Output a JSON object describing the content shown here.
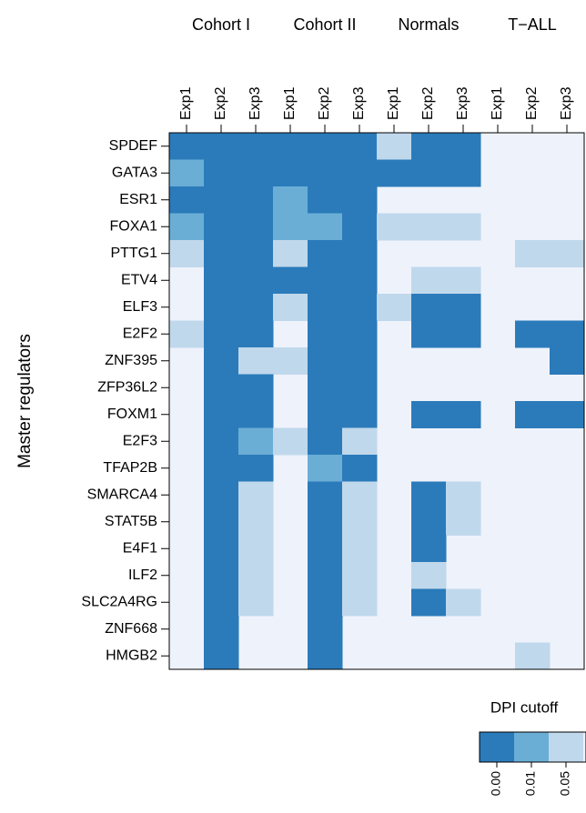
{
  "chart_data": {
    "type": "heatmap",
    "groups": [
      "Cohort I",
      "Cohort II",
      "Normals",
      "T−ALL"
    ],
    "x": [
      "Exp1",
      "Exp2",
      "Exp3",
      "Exp1",
      "Exp2",
      "Exp3",
      "Exp1",
      "Exp2",
      "Exp3",
      "Exp1",
      "Exp2",
      "Exp3"
    ],
    "y_label": "Master regulators",
    "categories": [
      "SPDEF",
      "GATA3",
      "ESR1",
      "FOXA1",
      "PTTG1",
      "ETV4",
      "ELF3",
      "E2F2",
      "ZNF395",
      "ZFP36L2",
      "FOXM1",
      "E2F3",
      "TFAP2B",
      "SMARCA4",
      "STAT5B",
      "E4F1",
      "ILF2",
      "SLC2A4RG",
      "ZNF668",
      "HMGB2"
    ],
    "values": [
      [
        0,
        0,
        0,
        0,
        0,
        0,
        0.05,
        0,
        0,
        null,
        null,
        null
      ],
      [
        0.01,
        0,
        0,
        0,
        0,
        0,
        0,
        0,
        0,
        null,
        null,
        null
      ],
      [
        0,
        0,
        0,
        0.01,
        0,
        0,
        null,
        null,
        null,
        null,
        null,
        null
      ],
      [
        0.01,
        0,
        0,
        0.01,
        0.01,
        0,
        0.05,
        0.05,
        0.05,
        null,
        null,
        null
      ],
      [
        0.05,
        0,
        0,
        0.05,
        0,
        0,
        null,
        null,
        null,
        null,
        0.05,
        0.05
      ],
      [
        null,
        0,
        0,
        0,
        0,
        0,
        null,
        0.05,
        0.05,
        null,
        null,
        null
      ],
      [
        null,
        0,
        0,
        0.05,
        0,
        0,
        0.05,
        0,
        0,
        null,
        null,
        null
      ],
      [
        0.05,
        0,
        0,
        null,
        0,
        0,
        null,
        0,
        0,
        null,
        0,
        0
      ],
      [
        null,
        0,
        0.05,
        0.05,
        0,
        0,
        null,
        null,
        null,
        null,
        null,
        0
      ],
      [
        null,
        0,
        0,
        null,
        0,
        0,
        null,
        null,
        null,
        null,
        null,
        null
      ],
      [
        null,
        0,
        0,
        null,
        0,
        0,
        null,
        0,
        0,
        null,
        0,
        0
      ],
      [
        null,
        0,
        0.01,
        0.05,
        0,
        0.05,
        null,
        null,
        null,
        null,
        null,
        null
      ],
      [
        null,
        0,
        0,
        null,
        0.01,
        0,
        null,
        null,
        null,
        null,
        null,
        null
      ],
      [
        null,
        0,
        0.05,
        null,
        0,
        0.05,
        null,
        0,
        0.05,
        null,
        null,
        null
      ],
      [
        null,
        0,
        0.05,
        null,
        0,
        0.05,
        null,
        0,
        0.05,
        null,
        null,
        null
      ],
      [
        null,
        0,
        0.05,
        null,
        0,
        0.05,
        null,
        0,
        null,
        null,
        null,
        null
      ],
      [
        null,
        0,
        0.05,
        null,
        0,
        0.05,
        null,
        0.05,
        null,
        null,
        null,
        null
      ],
      [
        null,
        0,
        0.05,
        null,
        0,
        0.05,
        null,
        0,
        0.05,
        null,
        null,
        null
      ],
      [
        null,
        0,
        null,
        null,
        0,
        null,
        null,
        null,
        null,
        null,
        null,
        null
      ],
      [
        null,
        0,
        null,
        null,
        0,
        null,
        null,
        null,
        null,
        null,
        0.05,
        null
      ]
    ],
    "empty_color": "#eef2fb",
    "legend": {
      "title": "DPI cutoff",
      "levels": [
        {
          "value": 0,
          "label": "0.00"
        },
        {
          "value": 0.01,
          "label": "0.01"
        },
        {
          "value": 0.05,
          "label": "0.05"
        }
      ],
      "colors": [
        "#2b7bba",
        "#6aaed6",
        "#c0d8ec"
      ]
    }
  }
}
